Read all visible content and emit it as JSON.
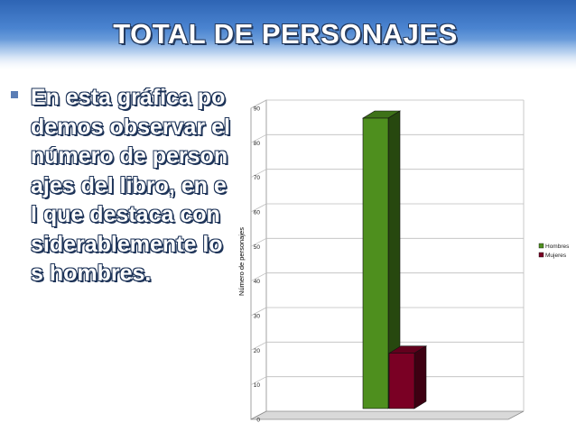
{
  "slide": {
    "title": "TOTAL DE PERSONAJES",
    "bullet_text": "En esta gráfica podemos observar el número de personajes del libro, en el que destaca considerablemente los hombres.",
    "accent_color": "#2e64b4"
  },
  "chart_data": {
    "type": "bar",
    "style": "3d",
    "categories": [
      ""
    ],
    "series": [
      {
        "name": "Hombres",
        "values": [
          84
        ],
        "color": "#4e8f1e"
      },
      {
        "name": "Mujeres",
        "values": [
          16
        ],
        "color": "#7a0024"
      }
    ],
    "title": "",
    "xlabel": "",
    "ylabel": "Número de personajes",
    "ylim": [
      0,
      90
    ],
    "yticks": [
      "0",
      "10",
      "20",
      "30",
      "40",
      "50",
      "60",
      "70",
      "80",
      "90"
    ],
    "grid": true,
    "legend_position": "right"
  }
}
